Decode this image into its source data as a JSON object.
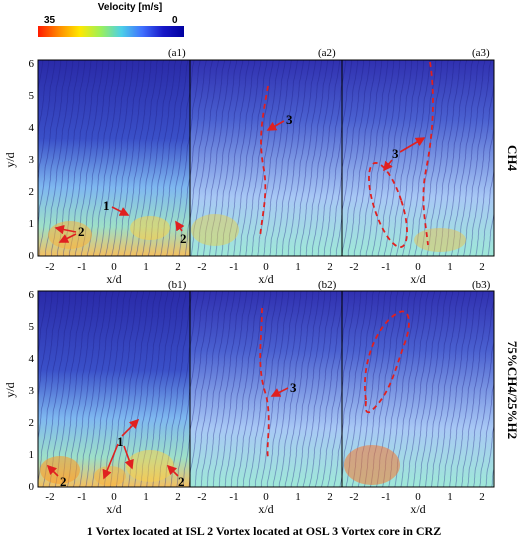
{
  "colorbar": {
    "title": "Velocity [m/s]",
    "min": "35",
    "max": "0"
  },
  "panels": {
    "a1": "(a1)",
    "a2": "(a2)",
    "a3": "(a3)",
    "b1": "(b1)",
    "b2": "(b2)",
    "b3": "(b3)"
  },
  "axes": {
    "ylabel": "y/d",
    "xlabel": "x/d",
    "yticks": [
      "0",
      "1",
      "2",
      "3",
      "4",
      "5",
      "6"
    ],
    "xticks": [
      "-2",
      "-1",
      "0",
      "1",
      "2"
    ]
  },
  "rows": {
    "top": "CH4",
    "bottom": "75%CH4/25%H2"
  },
  "annotations": {
    "n1": "1",
    "n2": "2",
    "n3": "3"
  },
  "caption": "1 Vortex located at ISL  2 Vortex located at OSL  3 Vortex core in CRZ",
  "colors": {
    "vortex_arrow": "#e02020",
    "dashed_outline": "#e02020"
  }
}
